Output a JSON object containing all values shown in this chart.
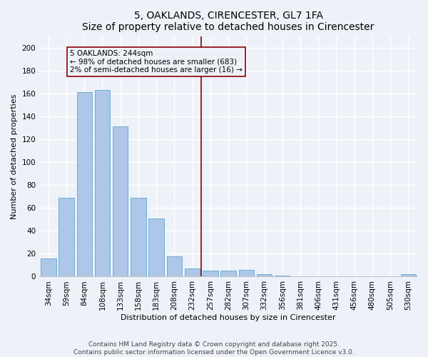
{
  "title": "5, OAKLANDS, CIRENCESTER, GL7 1FA",
  "subtitle": "Size of property relative to detached houses in Cirencester",
  "xlabel": "Distribution of detached houses by size in Cirencester",
  "ylabel": "Number of detached properties",
  "bar_labels": [
    "34sqm",
    "59sqm",
    "84sqm",
    "108sqm",
    "133sqm",
    "158sqm",
    "183sqm",
    "208sqm",
    "232sqm",
    "257sqm",
    "282sqm",
    "307sqm",
    "332sqm",
    "356sqm",
    "381sqm",
    "406sqm",
    "431sqm",
    "456sqm",
    "480sqm",
    "505sqm",
    "530sqm"
  ],
  "bar_values": [
    16,
    69,
    161,
    163,
    131,
    69,
    51,
    18,
    7,
    5,
    5,
    6,
    2,
    1,
    0,
    0,
    0,
    0,
    0,
    0,
    2
  ],
  "bar_color": "#aec6e8",
  "bar_edge_color": "#6baed6",
  "vline_x_index": 8,
  "vline_color": "#8b0000",
  "annotation_text": "5 OAKLANDS: 244sqm\n← 98% of detached houses are smaller (683)\n2% of semi-detached houses are larger (16) →",
  "ylim": [
    0,
    210
  ],
  "yticks": [
    0,
    20,
    40,
    60,
    80,
    100,
    120,
    140,
    160,
    180,
    200
  ],
  "footer": "Contains HM Land Registry data © Crown copyright and database right 2025.\nContains public sector information licensed under the Open Government Licence v3.0.",
  "background_color": "#eef2f8",
  "grid_color": "#ffffff",
  "title_fontsize": 10,
  "subtitle_fontsize": 9,
  "axis_label_fontsize": 8,
  "tick_fontsize": 7.5,
  "annotation_fontsize": 7.5,
  "footer_fontsize": 6.5
}
